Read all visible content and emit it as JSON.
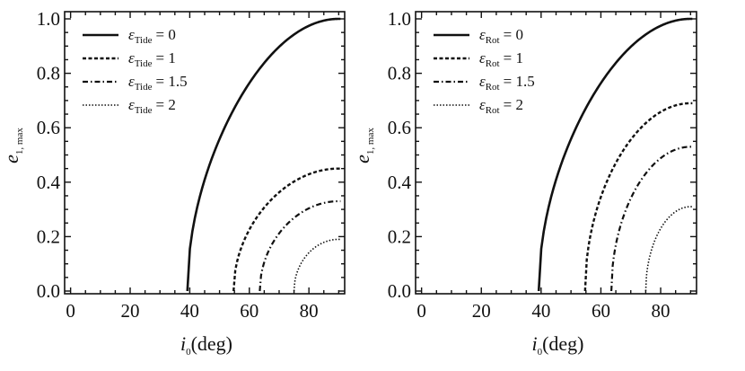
{
  "chart_data": [
    {
      "type": "line",
      "xlabel": {
        "main": "i",
        "sub": "0",
        "rest": "(deg)"
      },
      "ylabel": {
        "main": "e",
        "sub": "1, max"
      },
      "xlim": [
        -2,
        92
      ],
      "ylim": [
        0,
        1.0
      ],
      "xticks": [
        "0",
        "20",
        "40",
        "60",
        "80"
      ],
      "yticks": [
        "0.0",
        "0.2",
        "0.4",
        "0.6",
        "0.8",
        "1.0"
      ],
      "grid": false,
      "legend_position": "top-left",
      "series": [
        {
          "symbol": "ε",
          "sub": "Tide",
          "name": "= 0",
          "style": "solid",
          "i_start": 39.2,
          "e_max_at_90": 1.0
        },
        {
          "symbol": "ε",
          "sub": "Tide",
          "name": "= 1",
          "style": "dashed",
          "i_start": 54.7,
          "e_max_at_90": 0.45
        },
        {
          "symbol": "ε",
          "sub": "Tide",
          "name": "= 1.5",
          "style": "dashdot",
          "i_start": 63.5,
          "e_max_at_90": 0.33
        },
        {
          "symbol": "ε",
          "sub": "Tide",
          "name": "= 2",
          "style": "dotted",
          "i_start": 75.0,
          "e_max_at_90": 0.19
        }
      ]
    },
    {
      "type": "line",
      "xlabel": {
        "main": "i",
        "sub": "0",
        "rest": "(deg)"
      },
      "ylabel": {
        "main": "e",
        "sub": "1, max"
      },
      "xlim": [
        -2,
        92
      ],
      "ylim": [
        0,
        1.0
      ],
      "xticks": [
        "0",
        "20",
        "40",
        "60",
        "80"
      ],
      "yticks": [
        "0.0",
        "0.2",
        "0.4",
        "0.6",
        "0.8",
        "1.0"
      ],
      "grid": false,
      "legend_position": "top-left",
      "series": [
        {
          "symbol": "ε",
          "sub": "Rot",
          "name": "= 0",
          "style": "solid",
          "i_start": 39.2,
          "e_max_at_90": 1.0
        },
        {
          "symbol": "ε",
          "sub": "Rot",
          "name": "= 1",
          "style": "dashed",
          "i_start": 54.7,
          "e_max_at_90": 0.69
        },
        {
          "symbol": "ε",
          "sub": "Rot",
          "name": "= 1.5",
          "style": "dashdot",
          "i_start": 63.5,
          "e_max_at_90": 0.53
        },
        {
          "symbol": "ε",
          "sub": "Rot",
          "name": "= 2",
          "style": "dotted",
          "i_start": 75.0,
          "e_max_at_90": 0.31
        }
      ]
    }
  ]
}
